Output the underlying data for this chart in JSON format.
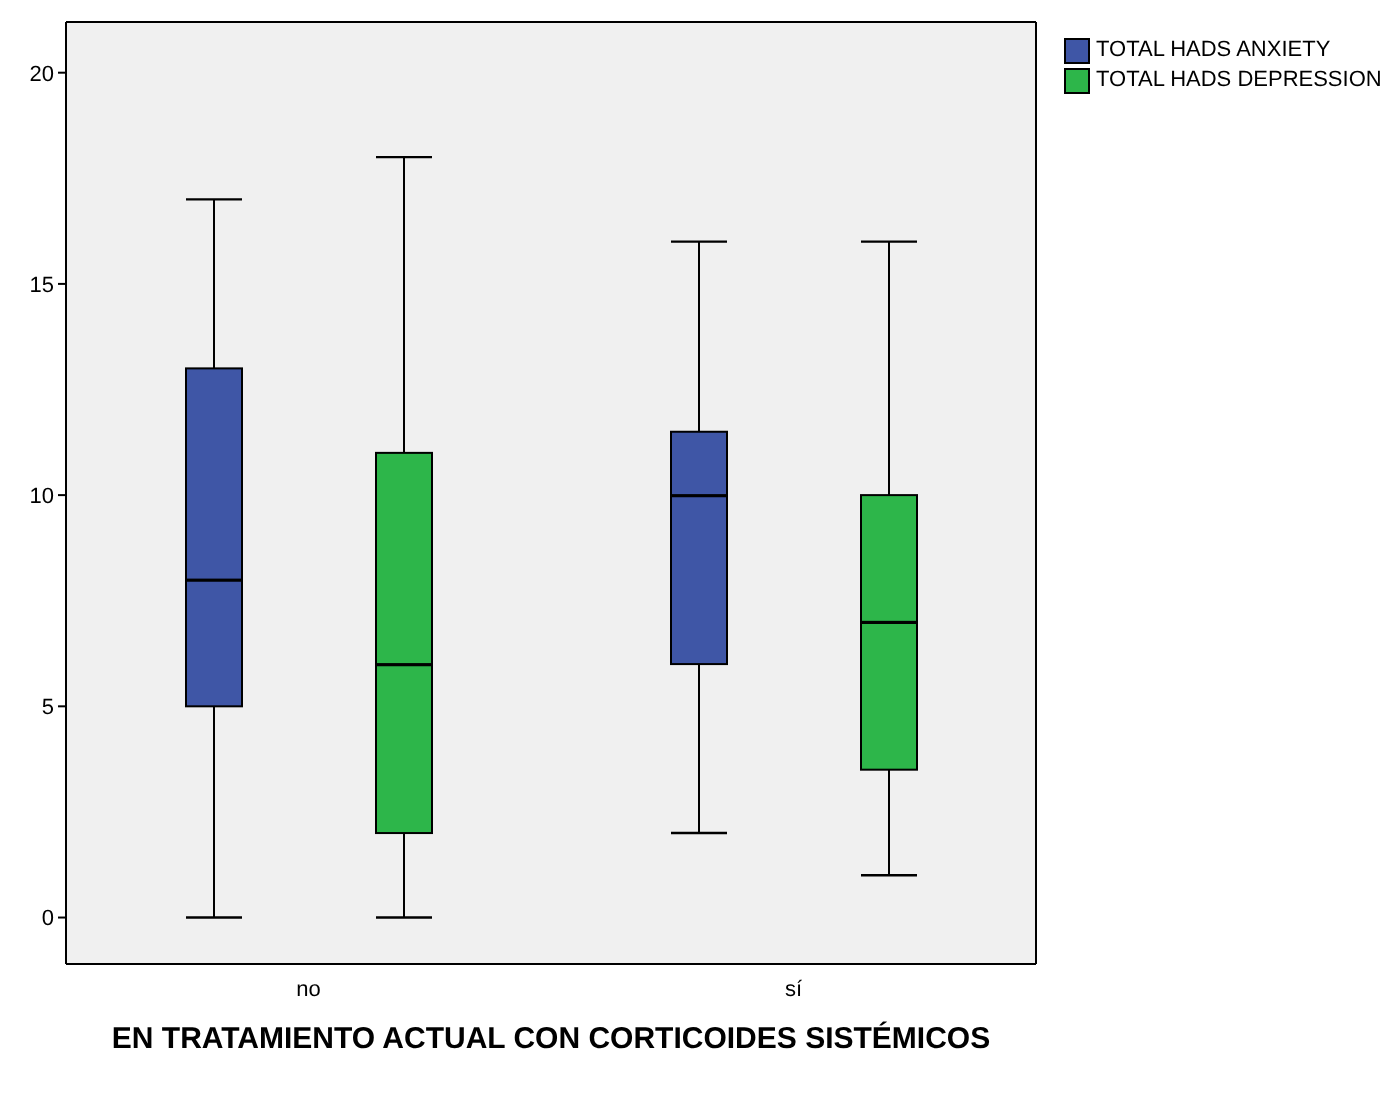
{
  "chart_data": {
    "type": "box",
    "xlabel": "EN TRATAMIENTO ACTUAL CON CORTICOIDES SISTÉMICOS",
    "categories": [
      "no",
      "sí"
    ],
    "ylim": [
      -1.1,
      21.2
    ],
    "yticks": [
      0,
      5,
      10,
      15,
      20
    ],
    "grid": false,
    "legend": "top right",
    "series": [
      {
        "name": "TOTAL HADS ANXIETY",
        "color": "#3f56a6",
        "boxes": [
          {
            "low": 0,
            "q1": 5,
            "median": 8,
            "q3": 13,
            "high": 17
          },
          {
            "low": 2,
            "q1": 6,
            "median": 10,
            "q3": 11.5,
            "high": 16
          }
        ]
      },
      {
        "name": "TOTAL HADS DEPRESSION",
        "color": "#2db64a",
        "boxes": [
          {
            "low": 0,
            "q1": 2,
            "median": 6,
            "q3": 11,
            "high": 18
          },
          {
            "low": 1,
            "q1": 3.5,
            "median": 7,
            "q3": 10,
            "high": 16
          }
        ]
      }
    ]
  }
}
